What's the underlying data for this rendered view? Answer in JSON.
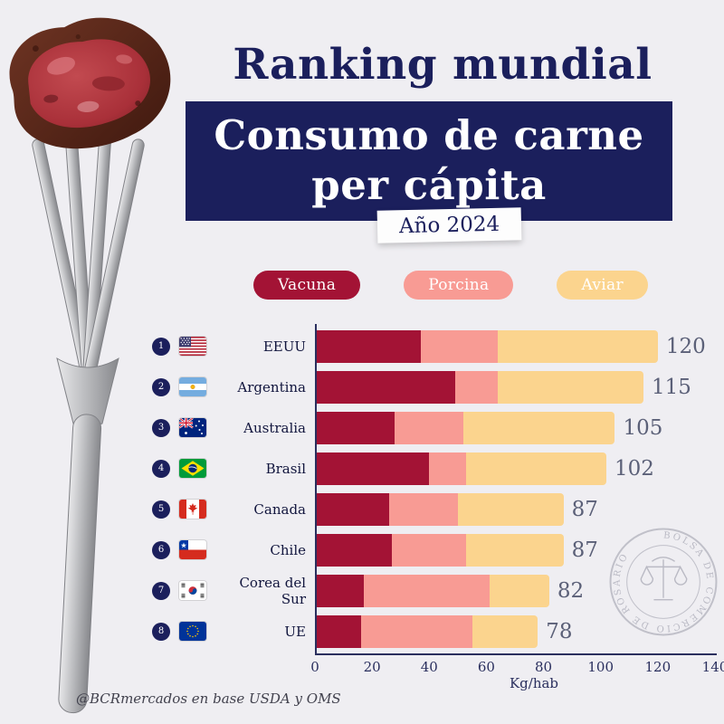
{
  "header": {
    "title": "Ranking mundial",
    "subtitle_line1": "Consumo de carne",
    "subtitle_line2": "per cápita",
    "year_badge": "Año 2024"
  },
  "legend": [
    {
      "label": "Vacuna",
      "color": "#a31335",
      "text_color": "#ffffff"
    },
    {
      "label": "Porcina",
      "color": "#f89b94",
      "text_color": "#ffffff"
    },
    {
      "label": "Aviar",
      "color": "#fbd48e",
      "text_color": "#ffffff"
    }
  ],
  "chart_data": {
    "type": "bar",
    "orientation": "horizontal",
    "stacked": true,
    "title": "Consumo de carne per cápita — Año 2024",
    "categories": [
      "EEUU",
      "Argentina",
      "Australia",
      "Brasil",
      "Canada",
      "Chile",
      "Corea del Sur",
      "UE"
    ],
    "ranks": [
      "1",
      "2",
      "3",
      "4",
      "5",
      "6",
      "7",
      "8"
    ],
    "flags": [
      "us",
      "ar",
      "au",
      "br",
      "ca",
      "cl",
      "kr",
      "eu"
    ],
    "series": [
      {
        "name": "Vacuna",
        "color": "#a31335",
        "values": [
          37,
          49,
          28,
          40,
          26,
          27,
          17,
          16
        ]
      },
      {
        "name": "Porcina",
        "color": "#f89b94",
        "values": [
          27,
          15,
          24,
          13,
          24,
          26,
          44,
          39
        ]
      },
      {
        "name": "Aviar",
        "color": "#fbd48e",
        "values": [
          56,
          51,
          53,
          49,
          37,
          34,
          21,
          23
        ]
      }
    ],
    "totals": [
      120,
      115,
      105,
      102,
      87,
      87,
      82,
      78
    ],
    "xlabel": "Kg/hab",
    "x_ticks": [
      0,
      20,
      40,
      60,
      80,
      100,
      120,
      140
    ],
    "xlim": [
      0,
      140
    ],
    "grid": false,
    "legend_position": "top"
  },
  "footer": {
    "credit": "@BCRmercados en base  USDA y OMS"
  },
  "watermark": {
    "seal_text": "BOLSA DE COMERCIO DE ROSARIO"
  },
  "colors": {
    "navy": "#1b1f5c",
    "background": "#efeef2",
    "value_label": "#5b6078"
  }
}
